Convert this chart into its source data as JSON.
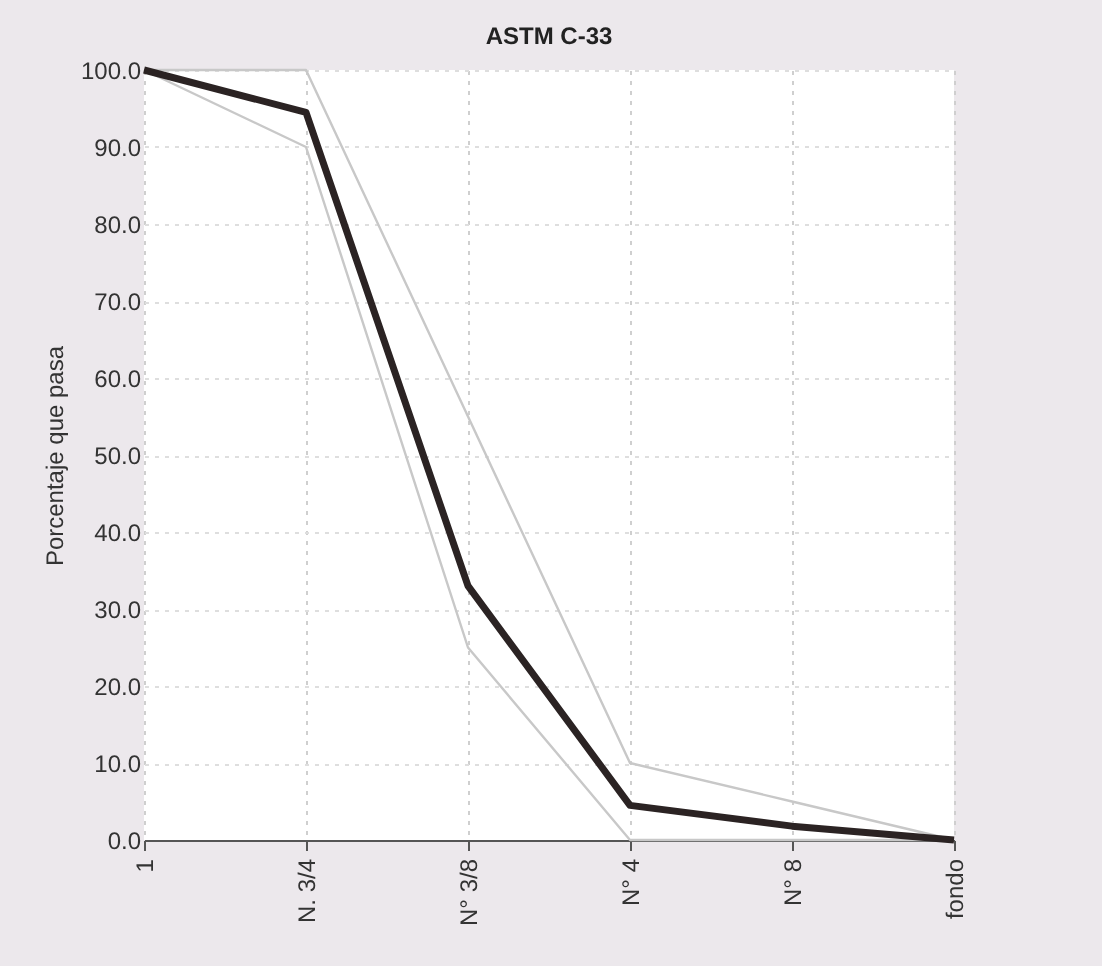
{
  "chart_data": {
    "type": "line",
    "title": "ASTM C-33",
    "ylabel": "Porcentaje  que pasa",
    "categories": [
      "1",
      "N. 3/4",
      "N° 3/8",
      "N° 4",
      "N° 8",
      "fondo"
    ],
    "series": [
      {
        "color": "#c8c8c8",
        "values": [
          100,
          100,
          55,
          10,
          5,
          0
        ]
      },
      {
        "color": "#c8c8c8",
        "values": [
          100,
          90,
          25,
          0,
          0,
          0
        ]
      },
      {
        "color": "#2b2323",
        "values": [
          100,
          94.5,
          33,
          4.5,
          1.8,
          0
        ]
      }
    ],
    "ylim": [
      0,
      100
    ],
    "yticks": [
      {
        "value": 0,
        "label": "0.0"
      },
      {
        "value": 10,
        "label": "10.0"
      },
      {
        "value": 20,
        "label": "20.0"
      },
      {
        "value": 30,
        "label": "30.0"
      },
      {
        "value": 40,
        "label": "40.0"
      },
      {
        "value": 50,
        "label": "50.0"
      },
      {
        "value": 60,
        "label": "60.0"
      },
      {
        "value": 70,
        "label": "70.0"
      },
      {
        "value": 80,
        "label": "80.0"
      },
      {
        "value": 90,
        "label": "90.0"
      },
      {
        "value": 100,
        "label": "100.0"
      }
    ],
    "grid": true,
    "marker": "none",
    "line_style": "solid"
  }
}
